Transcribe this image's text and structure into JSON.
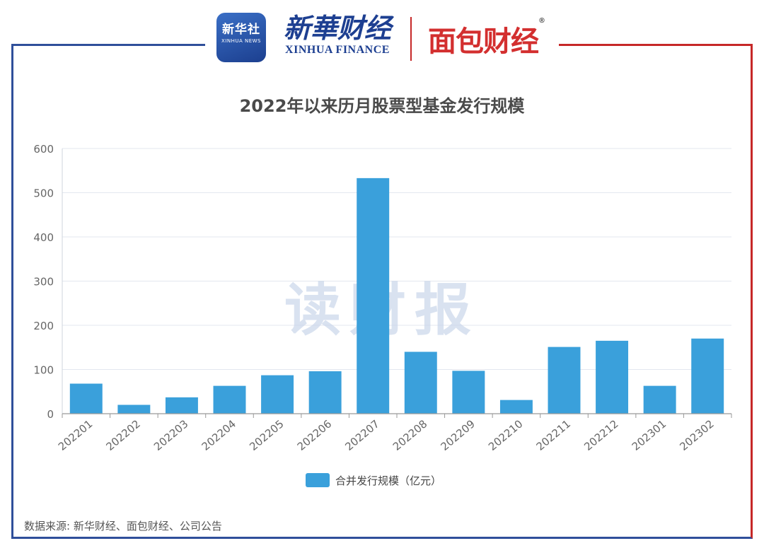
{
  "header": {
    "logo_xinhua_she": {
      "cn": "新华社",
      "en": "XINHUA NEWS"
    },
    "logo_xinhua_finance": {
      "cn": "新華财经",
      "en": "XINHUA FINANCE"
    },
    "logo_mianbao": {
      "text": "面包财经",
      "reg": "®"
    }
  },
  "watermark": "读财报",
  "source_note": "数据来源: 新华财经、面包财经、公司公告",
  "colors": {
    "bar": "#3aa0db",
    "frame_left": "#2f4f9a",
    "frame_right": "#c62828"
  },
  "chart_data": {
    "type": "bar",
    "title": "2022年以来历月股票型基金发行规模",
    "categories": [
      "202201",
      "202202",
      "202203",
      "202204",
      "202205",
      "202206",
      "202207",
      "202208",
      "202209",
      "202210",
      "202211",
      "202212",
      "202301",
      "202302"
    ],
    "series": [
      {
        "name": "合并发行规模（亿元）",
        "values": [
          68,
          20,
          37,
          63,
          87,
          96,
          533,
          140,
          97,
          31,
          151,
          165,
          63,
          170
        ]
      }
    ],
    "ylim": [
      0,
      600
    ],
    "yticks": [
      0,
      100,
      200,
      300,
      400,
      500,
      600
    ],
    "xlabel": "",
    "ylabel": "",
    "grid": true,
    "legend": "bottom-center"
  }
}
